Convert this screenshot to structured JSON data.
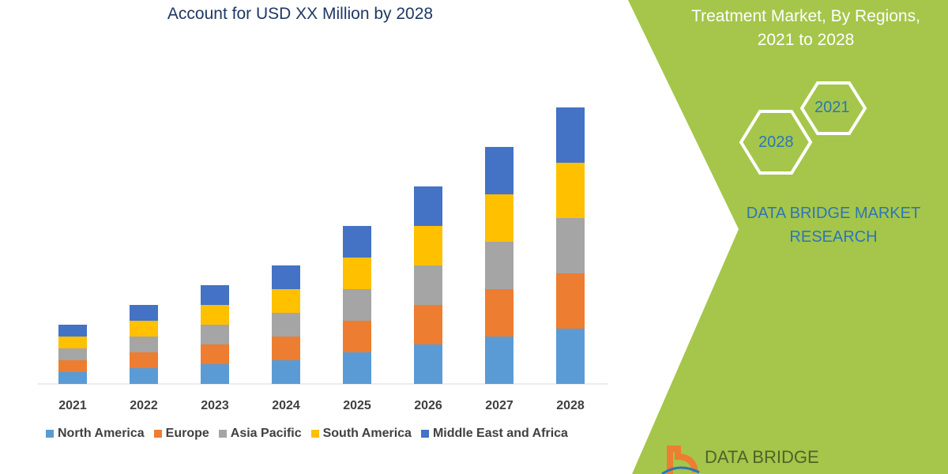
{
  "title": "Account for USD XX Million by 2028",
  "right_panel": {
    "title_line1": "Treatment Market, By Regions,",
    "title_line2": "2021 to 2028",
    "hex_top": "2021",
    "hex_bottom": "2028",
    "brand_line1": "DATA BRIDGE MARKET",
    "brand_line2": "RESEARCH",
    "logo_text": "DATA BRIDGE",
    "panel_color": "#a5c64a"
  },
  "chart_data": {
    "type": "bar",
    "stacked": true,
    "categories": [
      "2021",
      "2022",
      "2023",
      "2024",
      "2025",
      "2026",
      "2027",
      "2028"
    ],
    "series": [
      {
        "name": "North America",
        "color": "#5b9bd5",
        "values": [
          15,
          20,
          25,
          30,
          40,
          50,
          60,
          70
        ]
      },
      {
        "name": "Europe",
        "color": "#ed7d31",
        "values": [
          15,
          20,
          25,
          30,
          40,
          50,
          60,
          70
        ]
      },
      {
        "name": "Asia Pacific",
        "color": "#a5a5a5",
        "values": [
          15,
          20,
          25,
          30,
          40,
          50,
          60,
          70
        ]
      },
      {
        "name": "South America",
        "color": "#ffc000",
        "values": [
          15,
          20,
          25,
          30,
          40,
          50,
          60,
          70
        ]
      },
      {
        "name": "Middle East and Africa",
        "color": "#4472c4",
        "values": [
          15,
          20,
          25,
          30,
          40,
          50,
          60,
          70
        ]
      }
    ],
    "legend": "bottom",
    "grid": false,
    "yaxis_shown": false
  }
}
